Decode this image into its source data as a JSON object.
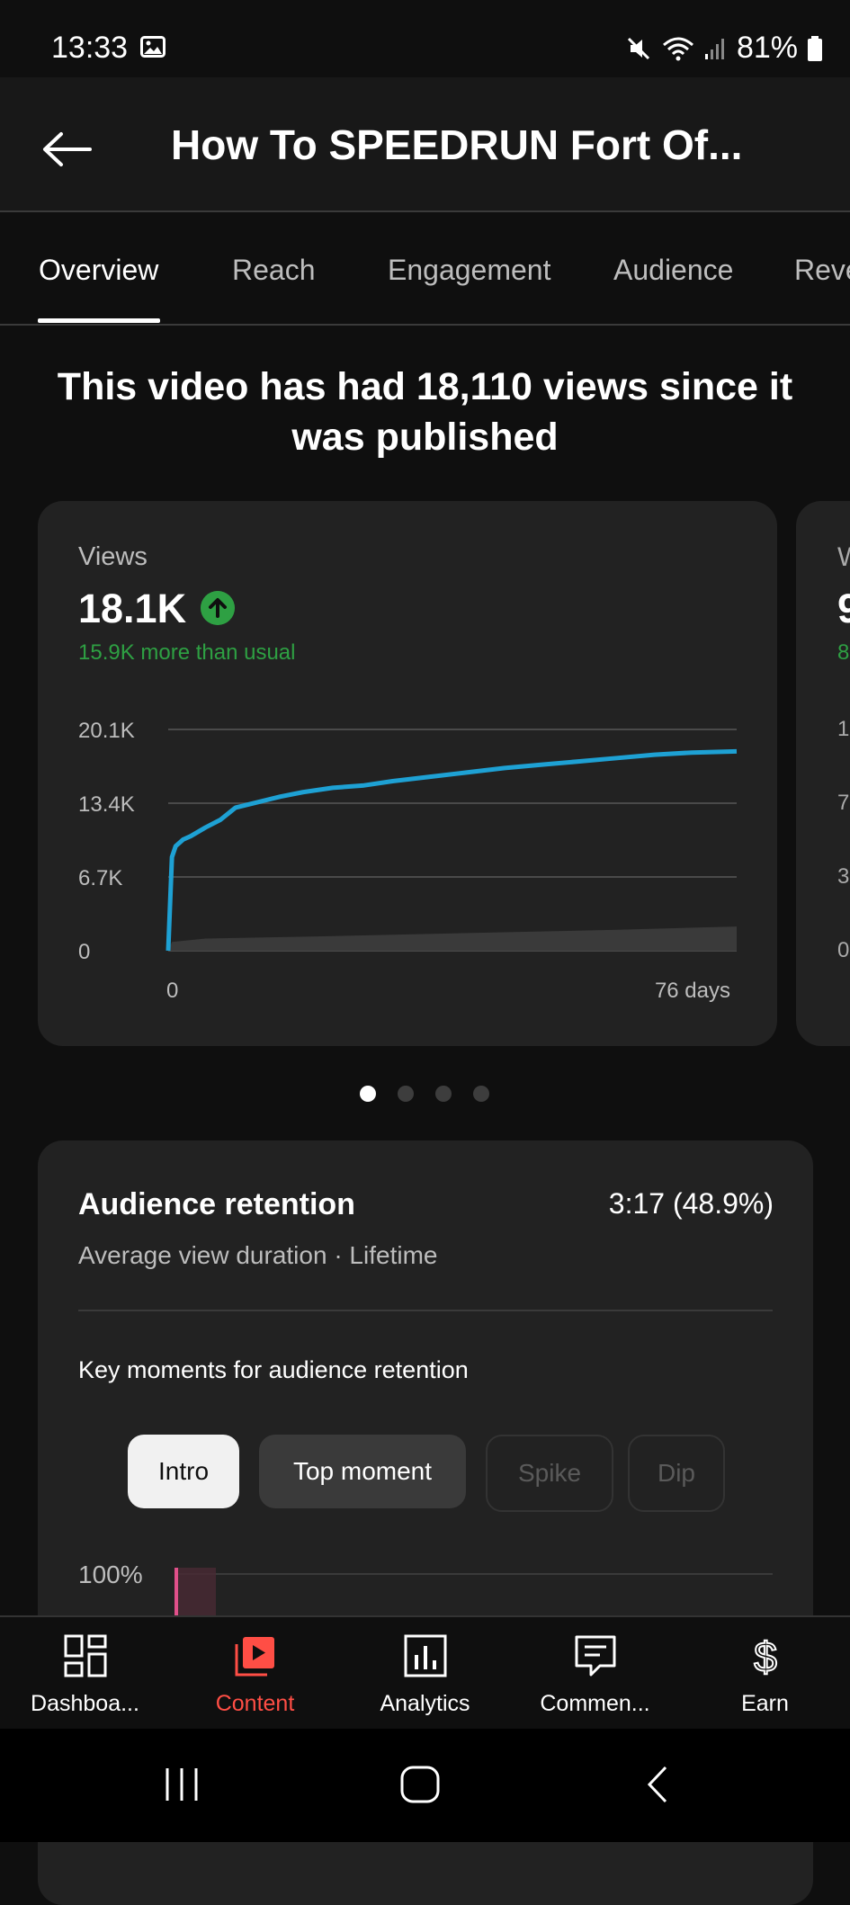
{
  "status_bar": {
    "time": "13:33",
    "battery": "81%"
  },
  "header": {
    "title": "How To SPEEDRUN Fort Of..."
  },
  "tabs": [
    {
      "label": "Overview"
    },
    {
      "label": "Reach"
    },
    {
      "label": "Engagement"
    },
    {
      "label": "Audience"
    },
    {
      "label": "Reve"
    }
  ],
  "headline": "This video has had 18,110 views since it was published",
  "views_card": {
    "label": "Views",
    "value": "18.1K",
    "trend": "up",
    "delta_text": "15.9K more than usual"
  },
  "next_card_partial": {
    "label": "W",
    "value": "9",
    "sub": "8",
    "ticks": [
      "1",
      "7",
      "3",
      "0"
    ]
  },
  "chart_data": {
    "type": "line",
    "y_ticks": [
      "20.1K",
      "13.4K",
      "6.7K",
      "0"
    ],
    "x_tick_labels": [
      "0",
      "76 days"
    ],
    "ylim": [
      0,
      20100
    ],
    "xlim": [
      0,
      76
    ],
    "grid": true,
    "series": [
      {
        "color": "#1ea1d4",
        "x": [
          0,
          0.5,
          1,
          2,
          3,
          5,
          7,
          9,
          12,
          15,
          18,
          22,
          26,
          30,
          35,
          40,
          45,
          50,
          55,
          60,
          65,
          70,
          76
        ],
        "y": [
          0,
          8500,
          9500,
          10100,
          10400,
          11200,
          11900,
          13000,
          13500,
          14000,
          14400,
          14800,
          15000,
          15400,
          15800,
          16200,
          16600,
          16900,
          17200,
          17500,
          17800,
          18000,
          18110
        ]
      },
      {
        "color": "#3a3a3a",
        "x": [
          0,
          0.5,
          5,
          20,
          40,
          60,
          76
        ],
        "y": [
          0,
          800,
          1100,
          1300,
          1600,
          1900,
          2200
        ]
      }
    ]
  },
  "carousel": {
    "count": 4,
    "active": 0
  },
  "retention": {
    "title": "Audience retention",
    "value": "3:17 (48.9%)",
    "subtitle": "Average view duration · Lifetime",
    "key_moments_label": "Key moments for audience retention",
    "chips": [
      "Intro",
      "Top moment",
      "Spike",
      "Dip"
    ],
    "y_top_label": "100%"
  },
  "bottom_nav": [
    {
      "label": "Dashboa...",
      "icon": "dashboard-icon"
    },
    {
      "label": "Content",
      "icon": "content-icon",
      "active": true
    },
    {
      "label": "Analytics",
      "icon": "analytics-icon"
    },
    {
      "label": "Commen...",
      "icon": "comments-icon"
    },
    {
      "label": "Earn",
      "icon": "earn-icon"
    }
  ],
  "colors": {
    "accent_red": "#ff4e45",
    "line_blue": "#1ea1d4",
    "green": "#2ea043"
  }
}
